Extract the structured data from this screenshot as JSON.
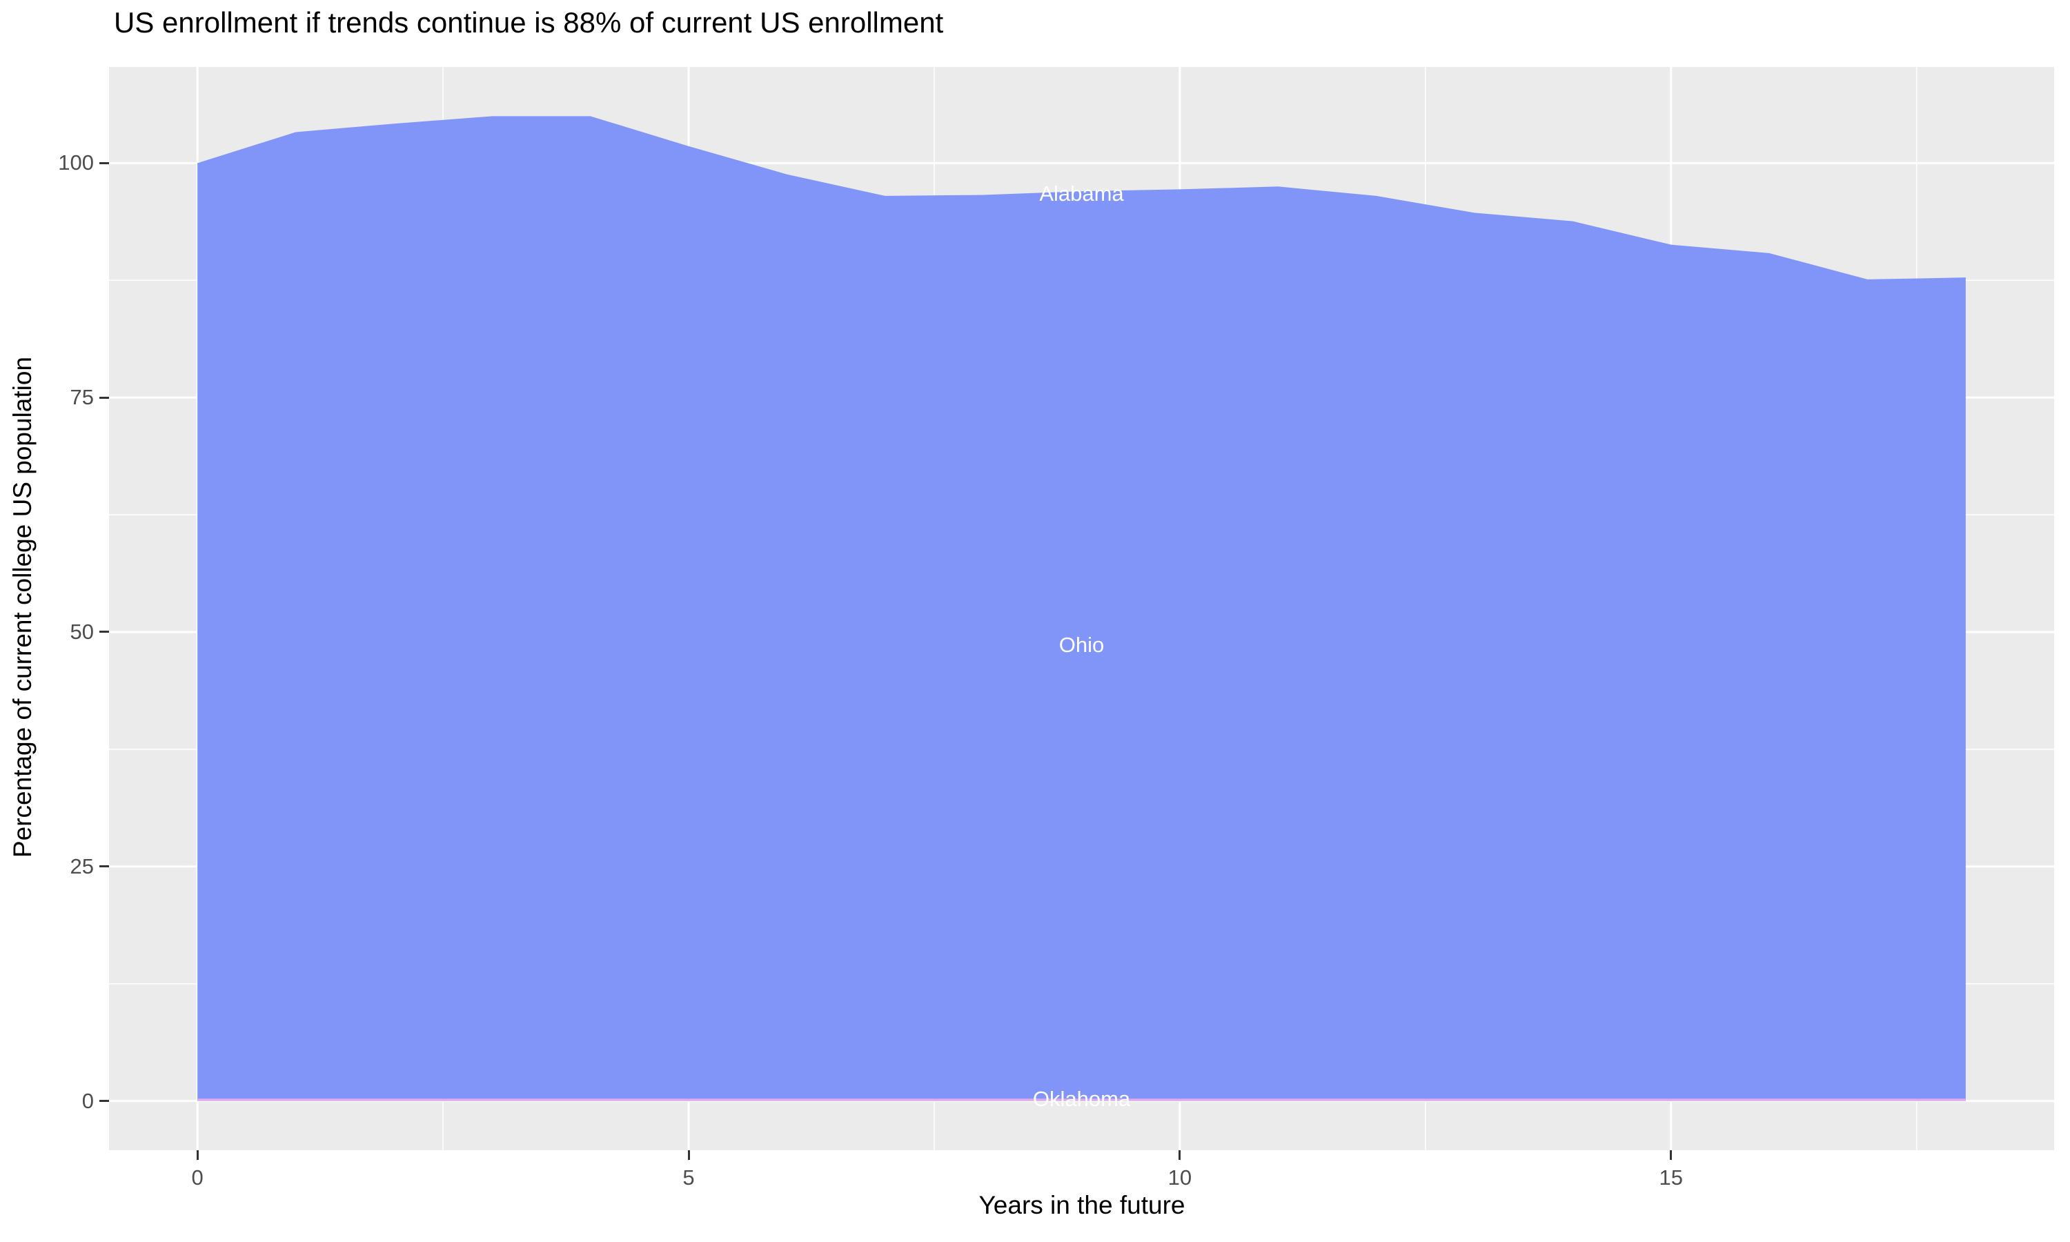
{
  "chart_data": {
    "type": "area",
    "stacked": true,
    "title": "US enrollment if trends continue is 88% of current US enrollment",
    "x": [
      0,
      1,
      2,
      3,
      4,
      5,
      6,
      7,
      8,
      9,
      10,
      11,
      12,
      13,
      14,
      15,
      16,
      17,
      18
    ],
    "series": [
      {
        "name": "bottom sliver band (pink)",
        "color_key": "area_pink",
        "values": [
          0.25,
          0.25,
          0.25,
          0.25,
          0.25,
          0.25,
          0.25,
          0.25,
          0.25,
          0.25,
          0.25,
          0.25,
          0.25,
          0.25,
          0.25,
          0.25,
          0.25,
          0.25,
          0.25
        ]
      },
      {
        "name": "stacked states band (blue)",
        "color_key": "area_blue",
        "values": [
          99.75,
          103.05,
          103.95,
          104.75,
          104.75,
          101.55,
          98.55,
          96.25,
          96.35,
          96.75,
          96.95,
          97.25,
          96.25,
          94.45,
          93.55,
          91.05,
          90.15,
          87.35,
          87.55
        ]
      }
    ],
    "totals": [
      100,
      103.3,
      104.2,
      105,
      105,
      101.8,
      98.8,
      96.5,
      96.6,
      97,
      97.2,
      97.5,
      96.5,
      94.7,
      93.8,
      91.3,
      90.4,
      87.6,
      87.8
    ],
    "x_axis": {
      "title": "Years in the future",
      "ticks": [
        0,
        5,
        10,
        15
      ],
      "tick_labels": [
        "0",
        "5",
        "10",
        "15"
      ],
      "minor_ticks": [
        2.5,
        7.5,
        12.5,
        17.5
      ],
      "range": [
        -0.9,
        18.9
      ]
    },
    "y_axis": {
      "title": "Percentage of current college US population",
      "ticks": [
        0,
        25,
        50,
        75,
        100
      ],
      "tick_labels": [
        "0",
        "25",
        "50",
        "75",
        "100"
      ],
      "minor_ticks": [
        12.5,
        37.5,
        62.5,
        87.5
      ],
      "range": [
        -5.25,
        110.25
      ]
    },
    "area_labels": [
      {
        "text": "Alabama",
        "x": 9,
        "y": 96.7
      },
      {
        "text": "Ohio",
        "x": 9,
        "y": 48.6
      },
      {
        "text": "Oklahoma",
        "x": 9,
        "y": 0.2
      }
    ],
    "legend": "none",
    "grid": true,
    "colors": {
      "area_blue": "#8195F9",
      "area_pink": "#E2A9E9",
      "panel_bg": "#EBEBEB",
      "grid_major": "#FFFFFF",
      "grid_minor": "#FFFFFF",
      "tick_mark": "#333333",
      "tick_label": "#4D4D4D",
      "axis_title": "#000000",
      "title": "#000000",
      "area_label": "#FFFFFF"
    }
  }
}
